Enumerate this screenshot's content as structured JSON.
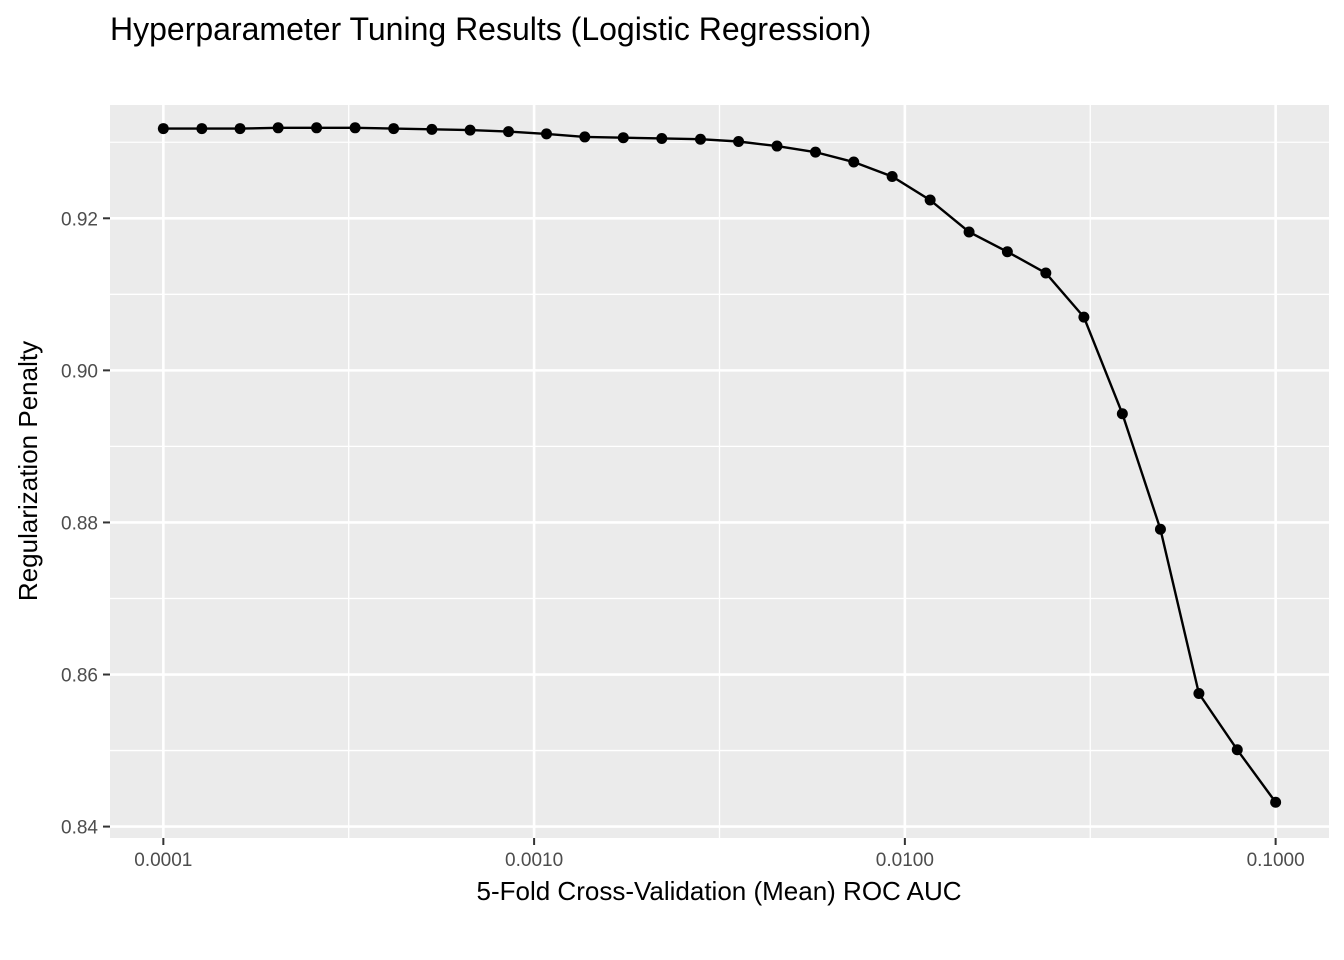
{
  "chart_data": {
    "type": "line",
    "title": "Hyperparameter Tuning Results (Logistic Regression)",
    "xlabel": "5-Fold Cross-Validation (Mean) ROC AUC",
    "ylabel": "Regularization Penalty",
    "x_scale": "log10",
    "xlim": [
      7.18e-05,
      0.1393
    ],
    "ylim": [
      0.8385,
      0.9349
    ],
    "x_ticks": [
      0.0001,
      0.001,
      0.01,
      0.1
    ],
    "x_tick_labels": [
      "0.0001",
      "0.0010",
      "0.0100",
      "0.1000"
    ],
    "y_ticks": [
      0.84,
      0.86,
      0.88,
      0.9,
      0.92
    ],
    "y_tick_labels": [
      "0.84",
      "0.86",
      "0.88",
      "0.90",
      "0.92"
    ],
    "grid": true,
    "legend": "none",
    "colors": {
      "panel": "#ebebeb",
      "series": "#000000",
      "grid": "#ffffff"
    },
    "series": [
      {
        "x": [
          0.0001,
          0.000127,
          0.000161,
          0.000204,
          0.000259,
          0.000329,
          0.000418,
          0.00053,
          0.000672,
          0.000853,
          0.00108,
          0.00137,
          0.00174,
          0.00221,
          0.00281,
          0.00356,
          0.00452,
          0.00574,
          0.00728,
          0.00924,
          0.0117,
          0.0149,
          0.0189,
          0.024,
          0.0304,
          0.0386,
          0.0489,
          0.0621,
          0.0788,
          0.1
        ],
        "y": [
          0.9318,
          0.9318,
          0.9318,
          0.9319,
          0.9319,
          0.9319,
          0.9318,
          0.9317,
          0.9316,
          0.9314,
          0.9311,
          0.9307,
          0.9306,
          0.9305,
          0.9304,
          0.9301,
          0.9295,
          0.9287,
          0.9274,
          0.9255,
          0.9224,
          0.9182,
          0.9156,
          0.9128,
          0.907,
          0.8943,
          0.8791,
          0.8575,
          0.8501,
          0.8432
        ]
      }
    ]
  }
}
